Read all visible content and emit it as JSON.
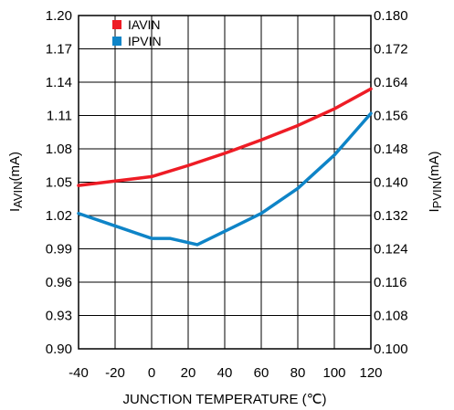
{
  "chart_data": {
    "type": "line",
    "xlabel": "JUNCTION TEMPERATURE (℃)",
    "ylabel_left": {
      "main": "I",
      "sub": "AVIN",
      "unit": "(mA)"
    },
    "ylabel_right": {
      "main": "I",
      "sub": "PVIN",
      "unit": "(mA)"
    },
    "x_ticks": [
      "-40",
      "-20",
      "0",
      "20",
      "40",
      "60",
      "80",
      "100",
      "120"
    ],
    "xlim": [
      -40,
      120
    ],
    "y_left_ticks": [
      "0.90",
      "0.93",
      "0.96",
      "0.99",
      "1.02",
      "1.05",
      "1.08",
      "1.11",
      "1.14",
      "1.17",
      "1.20"
    ],
    "ylim_left": [
      0.9,
      1.2
    ],
    "y_right_ticks": [
      "0.100",
      "0.108",
      "0.116",
      "0.124",
      "0.132",
      "0.140",
      "0.148",
      "0.156",
      "0.164",
      "0.172",
      "0.180"
    ],
    "ylim_right": [
      0.1,
      0.18
    ],
    "grid": true,
    "legend": {
      "placement": "top-left"
    },
    "series": [
      {
        "name": "IAVIN",
        "axis": "left",
        "color": "#ee1c25",
        "x": [
          -40,
          -20,
          -10,
          0,
          20,
          40,
          60,
          80,
          100,
          120
        ],
        "values": [
          1.047,
          1.051,
          1.053,
          1.055,
          1.065,
          1.076,
          1.088,
          1.101,
          1.116,
          1.134
        ]
      },
      {
        "name": "IPVIN",
        "axis": "right",
        "color": "#0e84c7",
        "x": [
          -40,
          -20,
          0,
          10,
          25,
          40,
          60,
          80,
          100,
          120
        ],
        "values": [
          0.1325,
          0.1295,
          0.1265,
          0.1265,
          0.125,
          0.1282,
          0.1325,
          0.1385,
          0.1465,
          0.1565
        ]
      }
    ]
  }
}
